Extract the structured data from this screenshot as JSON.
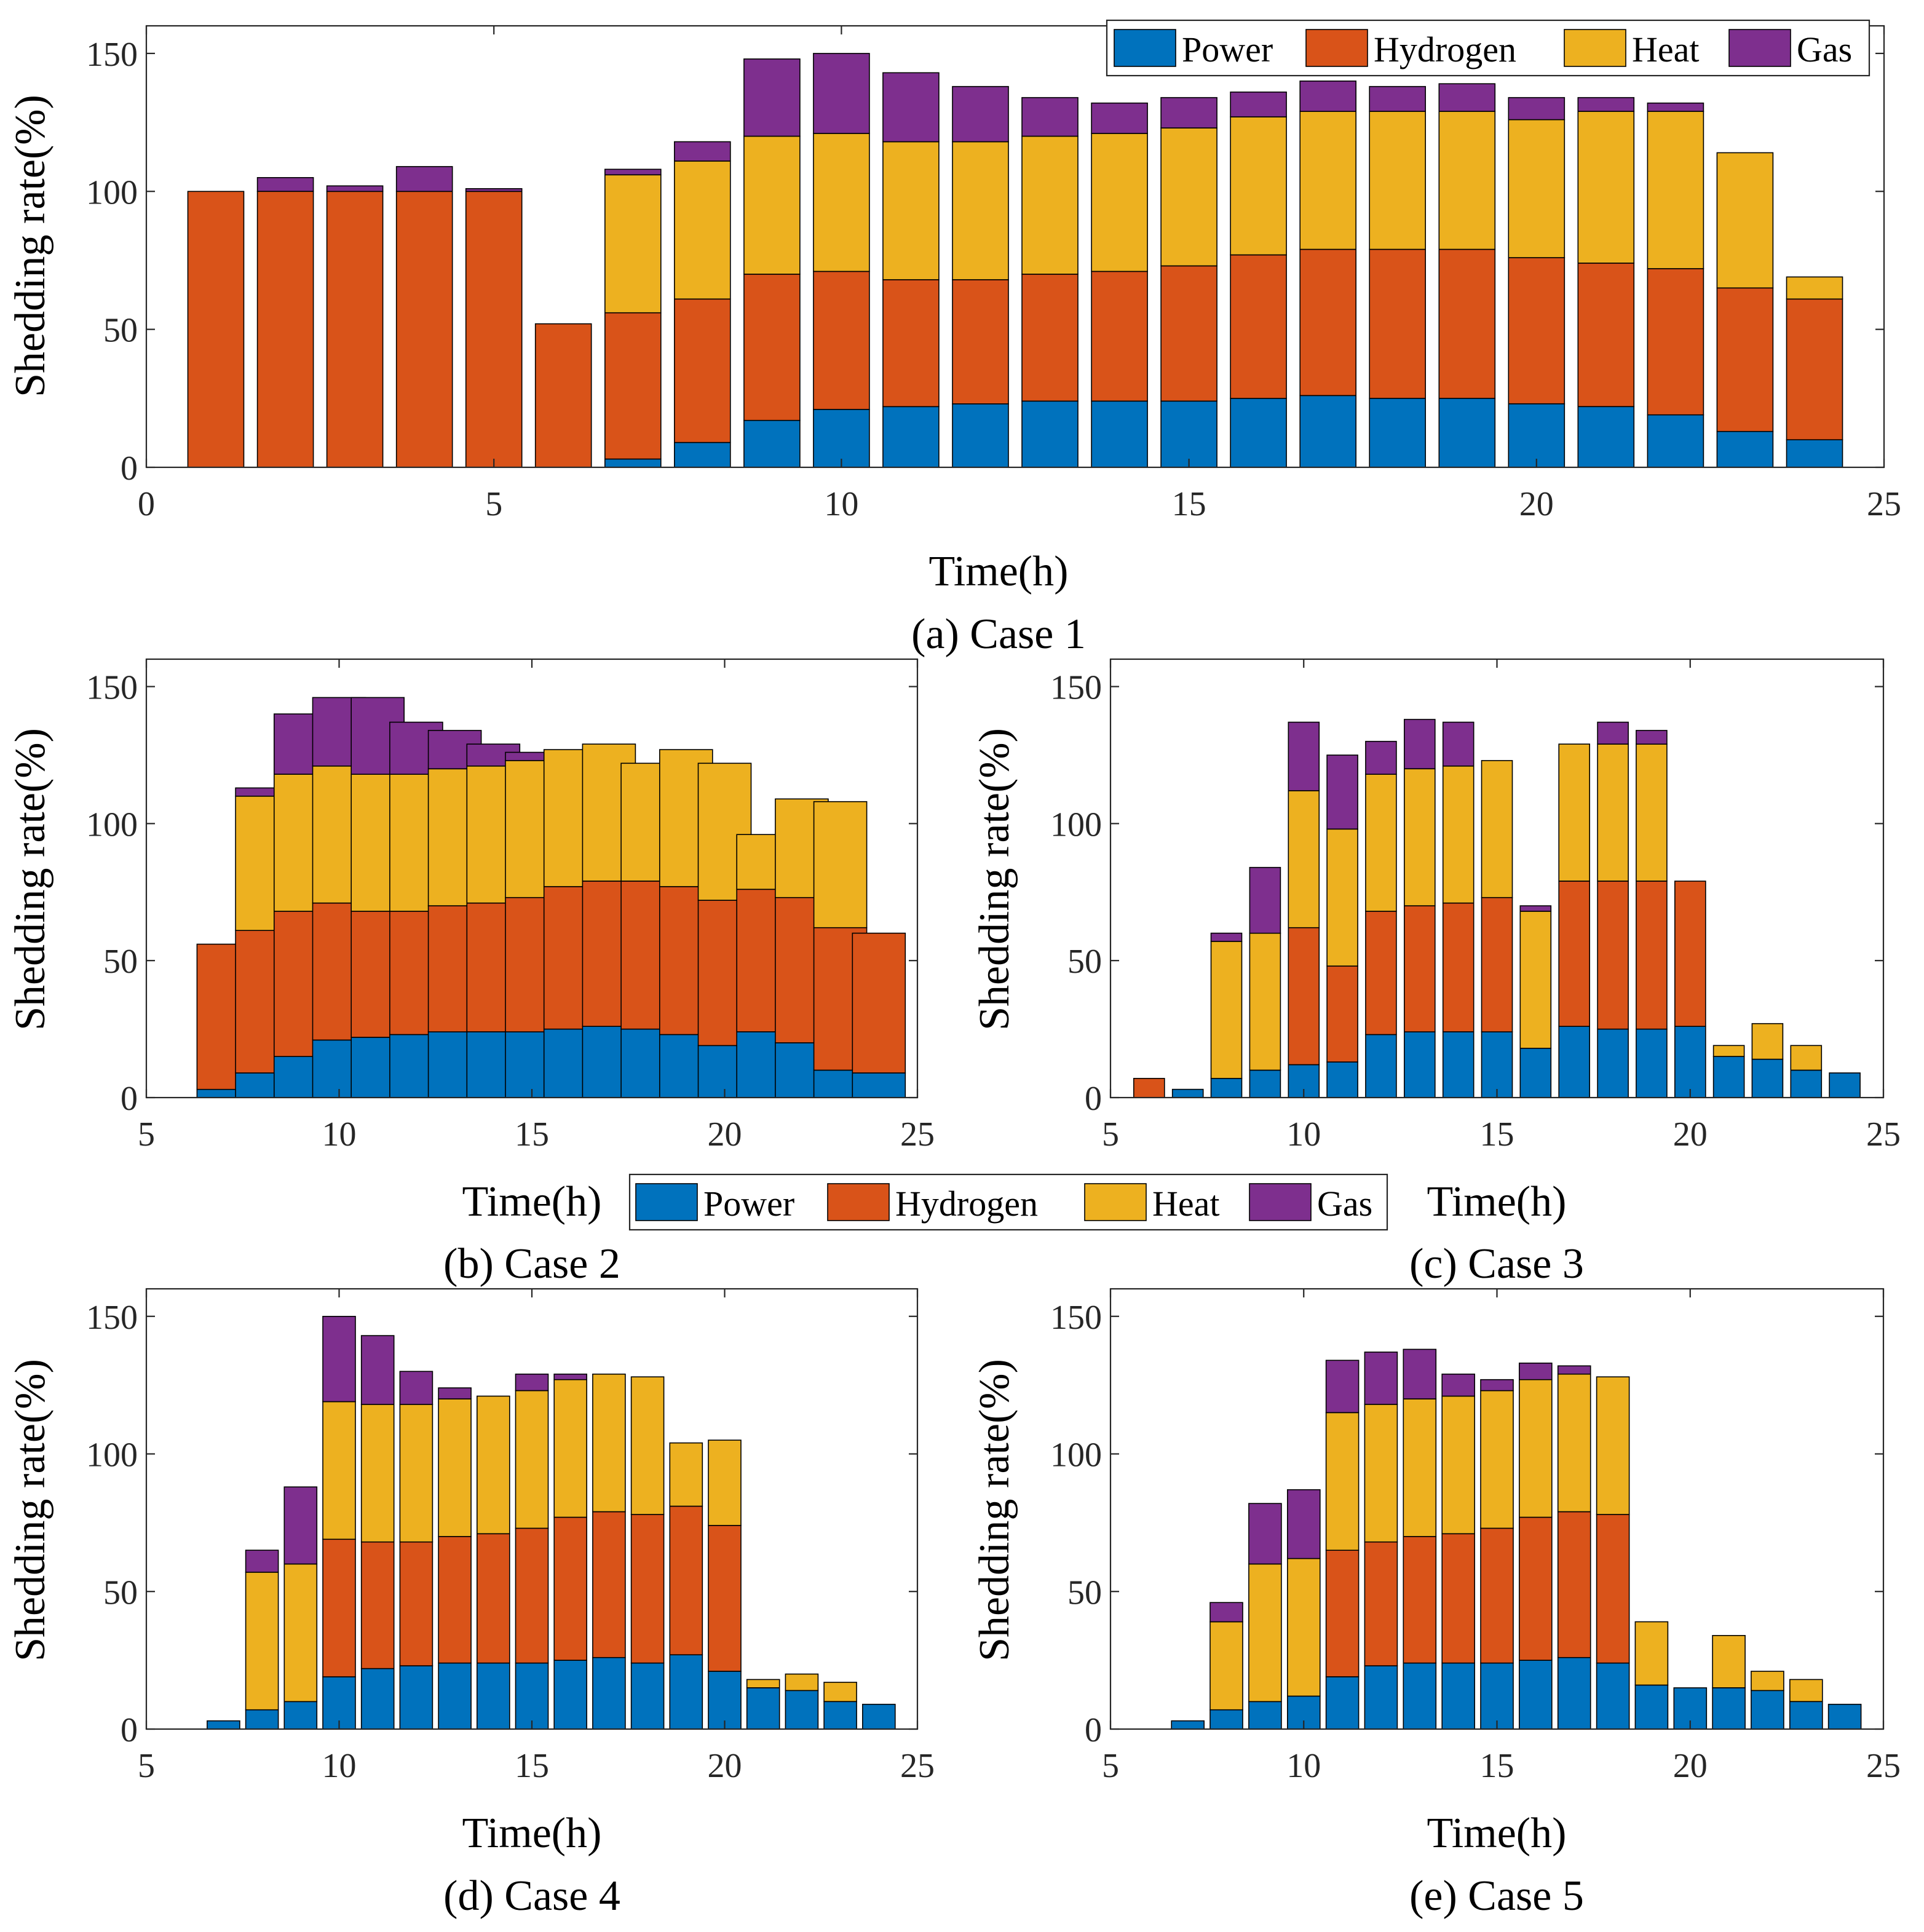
{
  "legend": {
    "labels": [
      "Power",
      "Hydrogen",
      "Heat",
      "Gas"
    ],
    "colors": [
      "#0072BD",
      "#D95319",
      "#EDB120",
      "#7E2F8E"
    ]
  },
  "chart_data": [
    {
      "type": "bar",
      "stacked": true,
      "id": "a",
      "caption": "(a) Case 1",
      "xlabel": "Time(h)",
      "ylabel": "Shedding rate(%)",
      "xlim": [
        0,
        25
      ],
      "ylim": [
        0,
        160
      ],
      "xticks": [
        0,
        5,
        10,
        15,
        20,
        25
      ],
      "yticks": [
        0,
        50,
        100,
        150
      ],
      "legend": "top-right",
      "x": [
        1,
        2,
        3,
        4,
        5,
        6,
        7,
        8,
        9,
        10,
        11,
        12,
        13,
        14,
        15,
        16,
        17,
        18,
        19,
        20,
        21,
        22,
        23,
        24
      ],
      "series": [
        {
          "name": "Power",
          "values": [
            0,
            0,
            0,
            0,
            0,
            0,
            3,
            9,
            17,
            21,
            22,
            23,
            24,
            24,
            24,
            25,
            26,
            25,
            25,
            23,
            22,
            19,
            13,
            10
          ]
        },
        {
          "name": "Hydrogen",
          "values": [
            100,
            100,
            100,
            100,
            100,
            52,
            53,
            52,
            53,
            50,
            46,
            45,
            46,
            47,
            49,
            52,
            53,
            54,
            54,
            53,
            52,
            53,
            52,
            51
          ]
        },
        {
          "name": "Heat",
          "values": [
            0,
            0,
            0,
            0,
            0,
            0,
            50,
            50,
            50,
            50,
            50,
            50,
            50,
            50,
            50,
            50,
            50,
            50,
            50,
            50,
            55,
            57,
            49,
            8
          ]
        },
        {
          "name": "Gas",
          "values": [
            0,
            5,
            2,
            9,
            1,
            0,
            2,
            7,
            28,
            29,
            25,
            20,
            14,
            11,
            11,
            9,
            11,
            9,
            10,
            8,
            5,
            3,
            0,
            0
          ]
        }
      ]
    },
    {
      "type": "bar",
      "stacked": true,
      "id": "b",
      "caption": "(b) Case 2",
      "xlabel": "Time(h)",
      "ylabel": "Shedding rate(%)",
      "xlim": [
        5,
        25
      ],
      "ylim": [
        0,
        160
      ],
      "xticks": [
        5,
        10,
        15,
        20,
        25
      ],
      "yticks": [
        0,
        50,
        100,
        150
      ],
      "x": [
        7,
        8,
        9,
        10,
        11,
        12,
        13,
        14,
        15,
        16,
        17,
        18,
        19,
        20,
        21,
        22,
        23,
        24
      ],
      "series": [
        {
          "name": "Power",
          "values": [
            3,
            9,
            15,
            21,
            22,
            23,
            24,
            24,
            24,
            25,
            26,
            25,
            23,
            19,
            24,
            20,
            10,
            9
          ]
        },
        {
          "name": "Hydrogen",
          "values": [
            53,
            52,
            53,
            50,
            46,
            45,
            46,
            47,
            49,
            52,
            53,
            54,
            54,
            53,
            52,
            53,
            52,
            51
          ]
        },
        {
          "name": "Heat",
          "values": [
            0,
            49,
            50,
            50,
            50,
            50,
            50,
            50,
            50,
            50,
            50,
            43,
            50,
            50,
            20,
            36,
            46,
            0
          ]
        },
        {
          "name": "Gas",
          "values": [
            0,
            3,
            22,
            25,
            28,
            19,
            14,
            8,
            3,
            0,
            0,
            0,
            0,
            0,
            0,
            0,
            0,
            0
          ]
        }
      ]
    },
    {
      "type": "bar",
      "stacked": true,
      "id": "c",
      "caption": "(c) Case 3",
      "xlabel": "Time(h)",
      "ylabel": "Shedding rate(%)",
      "xlim": [
        5,
        25
      ],
      "ylim": [
        0,
        160
      ],
      "xticks": [
        5,
        10,
        15,
        20,
        25
      ],
      "yticks": [
        0,
        50,
        100,
        150
      ],
      "x": [
        6,
        7,
        8,
        9,
        10,
        11,
        12,
        13,
        14,
        15,
        16,
        17,
        18,
        19,
        20,
        21,
        22,
        23,
        24
      ],
      "series": [
        {
          "name": "Power",
          "values": [
            0,
            3,
            7,
            10,
            12,
            13,
            23,
            24,
            24,
            24,
            18,
            26,
            25,
            25,
            26,
            15,
            14,
            10,
            9
          ]
        },
        {
          "name": "Hydrogen",
          "values": [
            7,
            0,
            0,
            0,
            50,
            35,
            45,
            46,
            47,
            49,
            0,
            53,
            54,
            54,
            53,
            0,
            0,
            0,
            0
          ]
        },
        {
          "name": "Heat",
          "values": [
            0,
            0,
            50,
            50,
            50,
            50,
            50,
            50,
            50,
            50,
            50,
            50,
            50,
            50,
            0,
            4,
            13,
            9,
            0
          ]
        },
        {
          "name": "Gas",
          "values": [
            0,
            0,
            3,
            24,
            25,
            27,
            12,
            18,
            16,
            0,
            2,
            0,
            8,
            5,
            0,
            0,
            0,
            0,
            0
          ]
        }
      ]
    },
    {
      "type": "bar",
      "stacked": true,
      "id": "d",
      "caption": "(d) Case 4",
      "xlabel": "Time(h)",
      "ylabel": "Shedding rate(%)",
      "xlim": [
        5,
        25
      ],
      "ylim": [
        0,
        160
      ],
      "xticks": [
        5,
        10,
        15,
        20,
        25
      ],
      "yticks": [
        0,
        50,
        100,
        150
      ],
      "x": [
        7,
        8,
        9,
        10,
        11,
        12,
        13,
        14,
        15,
        16,
        17,
        18,
        19,
        20,
        21,
        22,
        23,
        24
      ],
      "series": [
        {
          "name": "Power",
          "values": [
            3,
            7,
            10,
            19,
            22,
            23,
            24,
            24,
            24,
            25,
            26,
            24,
            27,
            21,
            15,
            14,
            10,
            9
          ]
        },
        {
          "name": "Hydrogen",
          "values": [
            0,
            0,
            0,
            50,
            46,
            45,
            46,
            47,
            49,
            52,
            53,
            54,
            54,
            53,
            0,
            0,
            0,
            0
          ]
        },
        {
          "name": "Heat",
          "values": [
            0,
            50,
            50,
            50,
            50,
            50,
            50,
            50,
            50,
            50,
            50,
            50,
            23,
            31,
            3,
            6,
            7,
            0
          ]
        },
        {
          "name": "Gas",
          "values": [
            0,
            8,
            28,
            31,
            25,
            12,
            4,
            0,
            6,
            2,
            0,
            0,
            0,
            0,
            0,
            0,
            0,
            0
          ]
        }
      ]
    },
    {
      "type": "bar",
      "stacked": true,
      "id": "e",
      "caption": "(e) Case 5",
      "xlabel": "Time(h)",
      "ylabel": "Shedding rate(%)",
      "xlim": [
        5,
        25
      ],
      "ylim": [
        0,
        160
      ],
      "xticks": [
        5,
        10,
        15,
        20,
        25
      ],
      "yticks": [
        0,
        50,
        100,
        150
      ],
      "x": [
        7,
        8,
        9,
        10,
        11,
        12,
        13,
        14,
        15,
        16,
        17,
        18,
        19,
        20,
        21,
        22,
        23,
        24
      ],
      "series": [
        {
          "name": "Power",
          "values": [
            3,
            7,
            10,
            12,
            19,
            23,
            24,
            24,
            24,
            25,
            26,
            24,
            16,
            15,
            15,
            14,
            10,
            9
          ]
        },
        {
          "name": "Hydrogen",
          "values": [
            0,
            0,
            0,
            0,
            46,
            45,
            46,
            47,
            49,
            52,
            53,
            54,
            0,
            0,
            0,
            0,
            0,
            0
          ]
        },
        {
          "name": "Heat",
          "values": [
            0,
            32,
            50,
            50,
            50,
            50,
            50,
            50,
            50,
            50,
            50,
            50,
            23,
            0,
            19,
            7,
            8,
            0
          ]
        },
        {
          "name": "Gas",
          "values": [
            0,
            7,
            22,
            25,
            19,
            19,
            18,
            8,
            4,
            6,
            3,
            0,
            0,
            0,
            0,
            0,
            0,
            0
          ]
        }
      ]
    }
  ]
}
